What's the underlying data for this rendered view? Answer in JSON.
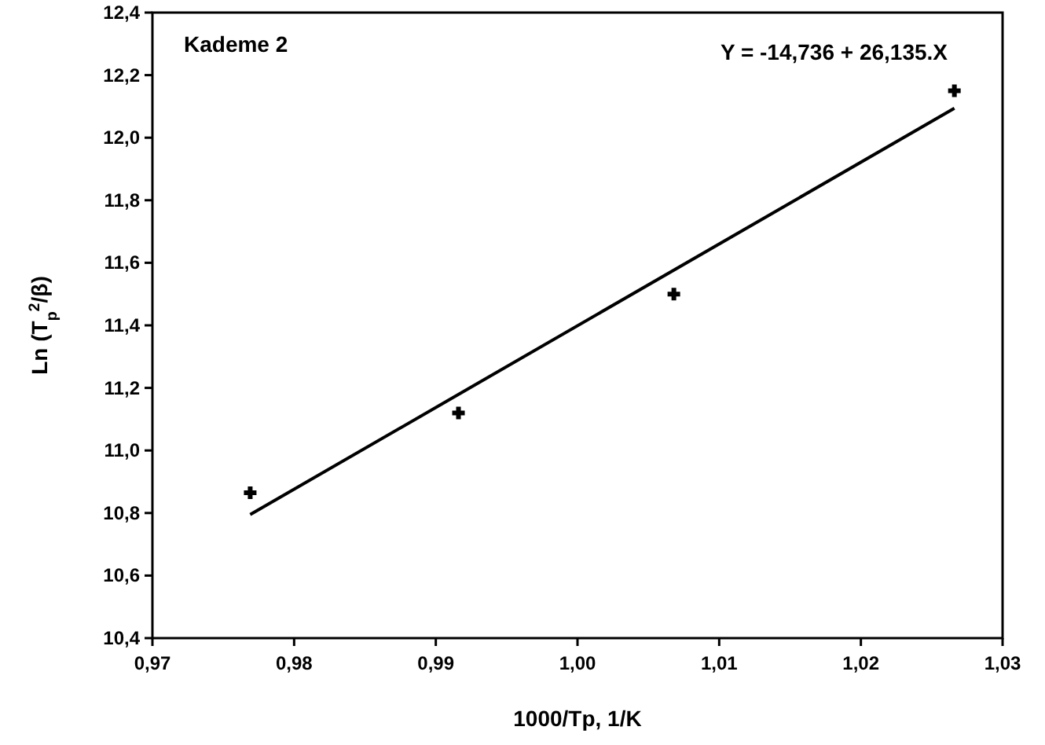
{
  "chart_data": {
    "type": "scatter",
    "xlabel": "1000/Tp, 1/K",
    "ylabel": "Ln (T$_{p}$$^{2}$/β)",
    "annotations": [
      "Kademe 2",
      "Y = -14,736 + 26,135.X"
    ],
    "series": [
      {
        "color": "#000000",
        "marker": "cross",
        "x": [
          0.9769,
          0.9916,
          1.0068,
          1.0266
        ],
        "values": [
          10.865,
          11.12,
          11.5,
          12.15
        ]
      },
      {
        "type": "line",
        "color": "#000000",
        "marker": "none",
        "line_style": "solid",
        "x": [
          0.9769,
          1.0266
        ],
        "values": [
          10.795,
          12.094
        ]
      }
    ],
    "xlim": [
      0.97,
      1.03
    ],
    "xticks": [
      {
        "value": 0.97,
        "label": "0,97"
      },
      {
        "value": 0.98,
        "label": "0,98"
      },
      {
        "value": 0.99,
        "label": "0,99"
      },
      {
        "value": 1.0,
        "label": "1,00"
      },
      {
        "value": 1.01,
        "label": "1,01"
      },
      {
        "value": 1.02,
        "label": "1,02"
      },
      {
        "value": 1.03,
        "label": "1,03"
      }
    ],
    "ylim": [
      10.4,
      12.4
    ],
    "yticks": [
      {
        "value": 10.4,
        "label": "10,4"
      },
      {
        "value": 10.6,
        "label": "10,6"
      },
      {
        "value": 10.8,
        "label": "10,8"
      },
      {
        "value": 11.0,
        "label": "11,0"
      },
      {
        "value": 11.2,
        "label": "11,2"
      },
      {
        "value": 11.4,
        "label": "11,4"
      },
      {
        "value": 11.6,
        "label": "11,6"
      },
      {
        "value": 11.8,
        "label": "11,8"
      },
      {
        "value": 12.0,
        "label": "12,0"
      },
      {
        "value": 12.2,
        "label": "12,2"
      },
      {
        "value": 12.4,
        "label": "12,4"
      }
    ],
    "grid": false
  }
}
